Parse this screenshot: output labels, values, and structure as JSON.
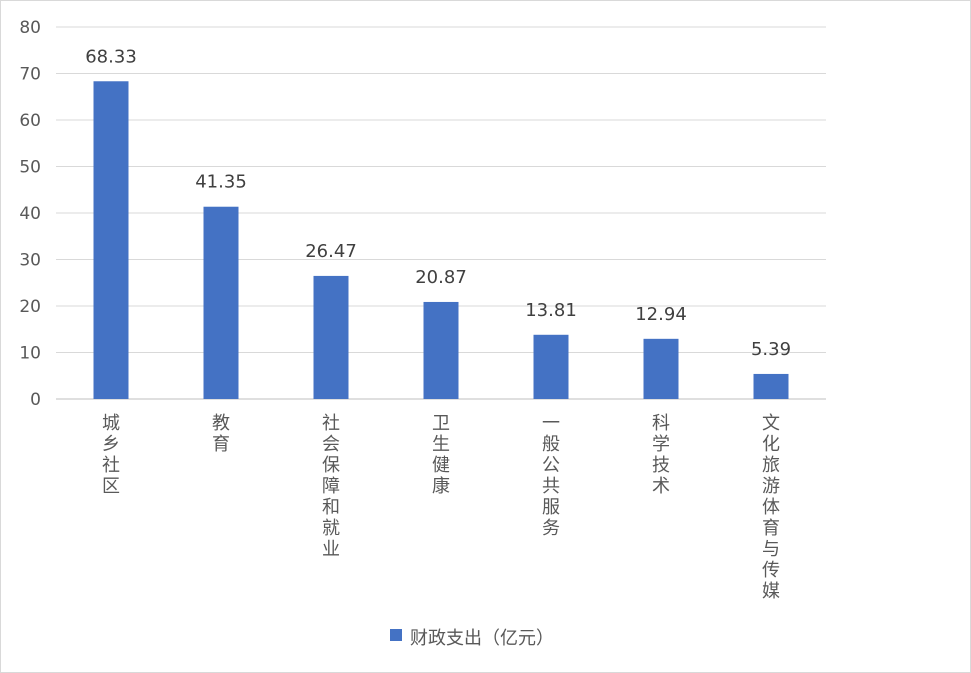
{
  "chart_data": {
    "type": "bar",
    "categories": [
      "城乡社区",
      "教育",
      "社会保障和就业",
      "卫生健康",
      "一般公共服务",
      "科学技术",
      "文化旅游体育与传媒"
    ],
    "series": [
      {
        "name": "财政支出（亿元）",
        "values": [
          68.33,
          41.35,
          26.47,
          20.87,
          13.81,
          12.94,
          5.39
        ],
        "data_labels": [
          "68.33",
          "41.35",
          "26.47",
          "20.87",
          "13.81",
          "12.94",
          "5.39"
        ],
        "color": "#4472c4"
      }
    ],
    "ylim": [
      0,
      80
    ],
    "yticks": [
      0,
      10,
      20,
      30,
      40,
      50,
      60,
      70,
      80
    ],
    "grid": true,
    "legend_position": "bottom",
    "colors": {
      "gridline": "#d9d9d9",
      "axis": "#bfbfbf",
      "bar": "#4472c4"
    }
  }
}
